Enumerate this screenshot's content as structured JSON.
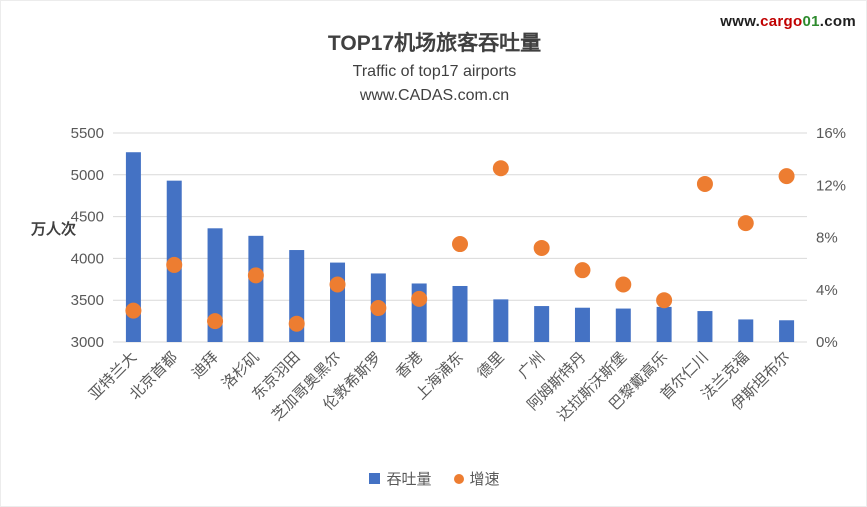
{
  "watermark": {
    "prefix": "www.",
    "brand": "cargo",
    "brand_num": "01",
    "suffix": ".com"
  },
  "chart_data": {
    "type": "combo-bar-scatter",
    "title": "TOP17机场旅客吞吐量",
    "subtitle": "Traffic of top17 airports",
    "source": "www.CADAS.com.cn",
    "left_axis": {
      "label": "万人次",
      "min": 3000,
      "max": 5500,
      "ticks": [
        3000,
        3500,
        4000,
        4500,
        5000,
        5500
      ]
    },
    "right_axis": {
      "min": 0,
      "max": 16,
      "tick_values": [
        0,
        4,
        8,
        12,
        16
      ],
      "tick_labels": [
        "0%",
        "4%",
        "8%",
        "12%",
        "16%"
      ]
    },
    "categories": [
      "亚特兰大",
      "北京首都",
      "迪拜",
      "洛杉矶",
      "东京羽田",
      "芝加哥奥黑尔",
      "伦敦希斯罗",
      "香港",
      "上海浦东",
      "德里",
      "广州",
      "阿姆斯特丹",
      "达拉斯沃斯堡",
      "巴黎戴高乐",
      "首尔仁川",
      "法兰克福",
      "伊斯坦布尔"
    ],
    "series": [
      {
        "name": "吞吐量",
        "type": "bar",
        "axis": "left",
        "color": "#4472C4",
        "values": [
          5270,
          4930,
          4360,
          4270,
          4100,
          3950,
          3820,
          3700,
          3670,
          3510,
          3430,
          3410,
          3400,
          3420,
          3370,
          3270,
          3260
        ]
      },
      {
        "name": "增速",
        "type": "scatter",
        "axis": "right",
        "color": "#ED7D31",
        "values": [
          2.4,
          5.9,
          1.6,
          5.1,
          1.4,
          4.4,
          2.6,
          3.3,
          7.5,
          13.3,
          7.2,
          5.5,
          4.4,
          3.2,
          12.1,
          9.1,
          12.7
        ]
      }
    ],
    "legend": [
      "吞吐量",
      "增速"
    ],
    "grid": true,
    "legend_position": "bottom"
  },
  "colors": {
    "bar": "#4472C4",
    "dot": "#ED7D31",
    "grid": "#D9D9D9",
    "text": "#595959",
    "title": "#404040",
    "wm_dark": "#1f1f1f",
    "wm_red": "#c00000",
    "wm_green": "#2e8b2e"
  }
}
